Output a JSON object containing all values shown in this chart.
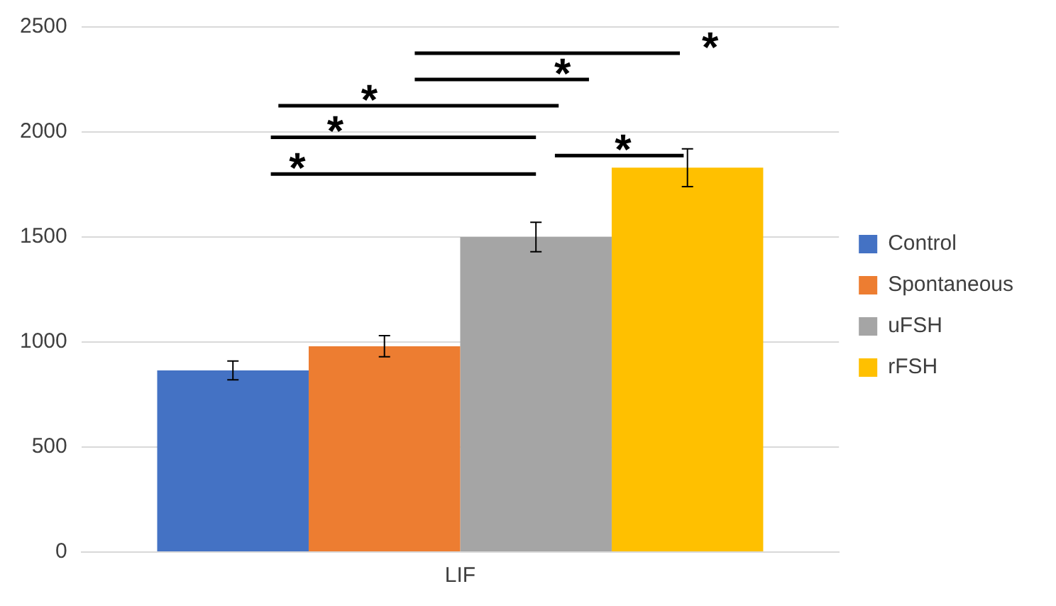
{
  "chart_data": {
    "type": "bar",
    "categories": [
      "LIF"
    ],
    "series": [
      {
        "name": "Control",
        "color": "#4472c4",
        "values": [
          865
        ],
        "errors": [
          45
        ]
      },
      {
        "name": "Spontaneous",
        "color": "#ed7d31",
        "values": [
          980
        ],
        "errors": [
          50
        ]
      },
      {
        "name": "uFSH",
        "color": "#a5a5a5",
        "values": [
          1500
        ],
        "errors": [
          70
        ]
      },
      {
        "name": "rFSH",
        "color": "#ffc000",
        "values": [
          1830
        ],
        "errors": [
          90
        ]
      }
    ],
    "ylim": [
      0,
      2500
    ],
    "yticks": [
      0,
      500,
      1000,
      1500,
      2000,
      2500
    ],
    "grid": "y",
    "legend": "right",
    "annotations": [
      "*",
      "*",
      "*",
      "*",
      "*",
      "*"
    ]
  }
}
